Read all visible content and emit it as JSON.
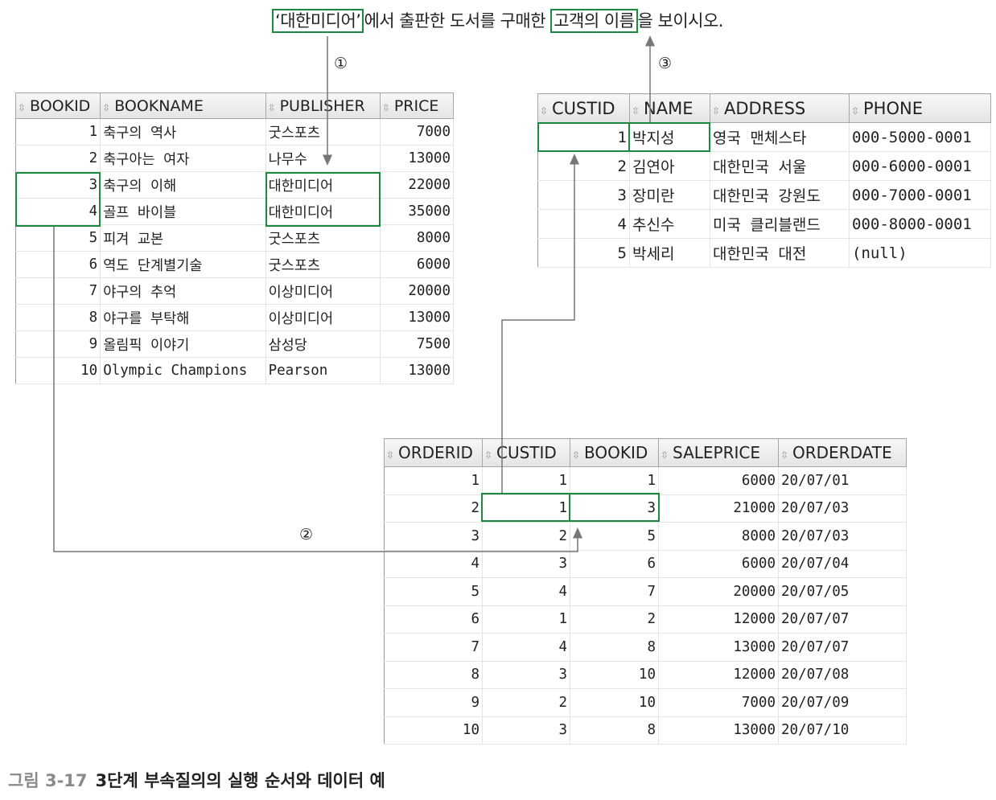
{
  "question": {
    "quote_open": "‘",
    "publisher": "대한미디어",
    "quote_close": "’",
    "mid": "에서 출판한 도서를 구매한 ",
    "customer_name": "고객의 이름",
    "end": "을 보이시오."
  },
  "steps": {
    "one": "①",
    "two": "②",
    "three": "③"
  },
  "book_table": {
    "columns": [
      "BOOKID",
      "BOOKNAME",
      "PUBLISHER",
      "PRICE"
    ],
    "rows": [
      [
        "1",
        "축구의 역사",
        "굿스포츠",
        "7000"
      ],
      [
        "2",
        "축구아는 여자",
        "나무수",
        "13000"
      ],
      [
        "3",
        "축구의 이해",
        "대한미디어",
        "22000"
      ],
      [
        "4",
        "골프 바이블",
        "대한미디어",
        "35000"
      ],
      [
        "5",
        "피겨 교본",
        "굿스포츠",
        "8000"
      ],
      [
        "6",
        "역도 단계별기술",
        "굿스포츠",
        "6000"
      ],
      [
        "7",
        "야구의 추억",
        "이상미디어",
        "20000"
      ],
      [
        "8",
        "야구를 부탁해",
        "이상미디어",
        "13000"
      ],
      [
        "9",
        "올림픽 이야기",
        "삼성당",
        "7500"
      ],
      [
        "10",
        "Olympic Champions",
        "Pearson",
        "13000"
      ]
    ]
  },
  "customer_table": {
    "columns": [
      "CUSTID",
      "NAME",
      "ADDRESS",
      "PHONE"
    ],
    "rows": [
      [
        "1",
        "박지성",
        "영국 맨체스타",
        "000-5000-0001"
      ],
      [
        "2",
        "김연아",
        "대한민국 서울",
        "000-6000-0001"
      ],
      [
        "3",
        "장미란",
        "대한민국 강원도",
        "000-7000-0001"
      ],
      [
        "4",
        "추신수",
        "미국 클리블랜드",
        "000-8000-0001"
      ],
      [
        "5",
        "박세리",
        "대한민국 대전",
        "(null)"
      ]
    ]
  },
  "order_table": {
    "columns": [
      "ORDERID",
      "CUSTID",
      "BOOKID",
      "SALEPRICE",
      "ORDERDATE"
    ],
    "rows": [
      [
        "1",
        "1",
        "1",
        "6000",
        "20/07/01"
      ],
      [
        "2",
        "1",
        "3",
        "21000",
        "20/07/03"
      ],
      [
        "3",
        "2",
        "5",
        "8000",
        "20/07/03"
      ],
      [
        "4",
        "3",
        "6",
        "6000",
        "20/07/04"
      ],
      [
        "5",
        "4",
        "7",
        "20000",
        "20/07/05"
      ],
      [
        "6",
        "1",
        "2",
        "12000",
        "20/07/07"
      ],
      [
        "7",
        "4",
        "8",
        "13000",
        "20/07/07"
      ],
      [
        "8",
        "3",
        "10",
        "12000",
        "20/07/08"
      ],
      [
        "9",
        "2",
        "10",
        "7000",
        "20/07/09"
      ],
      [
        "10",
        "3",
        "8",
        "13000",
        "20/07/10"
      ]
    ]
  },
  "caption": {
    "label": "그림 3-17",
    "text": "3단계 부속질의의 실행 순서와 데이터 예"
  },
  "colors": {
    "highlight": "#1b8a3e",
    "arrow": "#777777",
    "caption_label": "#8a8a8a"
  }
}
